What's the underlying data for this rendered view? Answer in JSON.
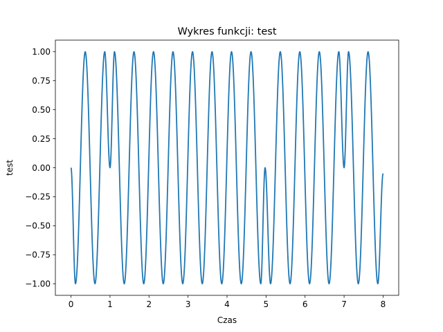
{
  "chart_data": {
    "type": "line",
    "title": "Wykres funkcji: test",
    "xlabel": "Czas",
    "ylabel": "test",
    "xlim": [
      -0.4,
      8.4
    ],
    "ylim": [
      -1.1,
      1.1
    ],
    "x_ticks": [
      0,
      1,
      2,
      3,
      4,
      5,
      6,
      7,
      8
    ],
    "x_tick_labels": [
      "0",
      "1",
      "2",
      "3",
      "4",
      "5",
      "6",
      "7",
      "8"
    ],
    "y_ticks": [
      -1.0,
      -0.75,
      -0.5,
      -0.25,
      0.0,
      0.25,
      0.5,
      0.75,
      1.0
    ],
    "y_tick_labels": [
      "−1.00",
      "−0.75",
      "−0.50",
      "−0.25",
      "0.00",
      "0.25",
      "0.50",
      "0.75",
      "1.00"
    ],
    "grid": false,
    "legend": "none",
    "series": [
      {
        "color": "#1f77b4",
        "x": [
          0,
          0.115,
          0.365,
          0.615,
          0.865,
          1,
          1.115,
          1.365,
          1.615,
          1.865,
          2.115,
          2.365,
          2.615,
          2.865,
          3.115,
          3.365,
          3.615,
          3.865,
          4.115,
          4.365,
          4.615,
          4.865,
          4.975,
          5.115,
          5.365,
          5.615,
          5.865,
          6.115,
          6.365,
          6.615,
          6.865,
          7,
          7.115,
          7.365,
          7.615,
          7.865,
          8
        ],
        "y": [
          0,
          -1,
          1,
          -1,
          1,
          0,
          1,
          -1,
          1,
          -1,
          1,
          -1,
          1,
          -1,
          1,
          -1,
          1,
          -1,
          1,
          -1,
          1,
          -1,
          0,
          -1,
          1,
          -1,
          1,
          -1,
          1,
          -1,
          1,
          0,
          1,
          -1,
          1,
          -1,
          -0.05
        ]
      }
    ]
  }
}
